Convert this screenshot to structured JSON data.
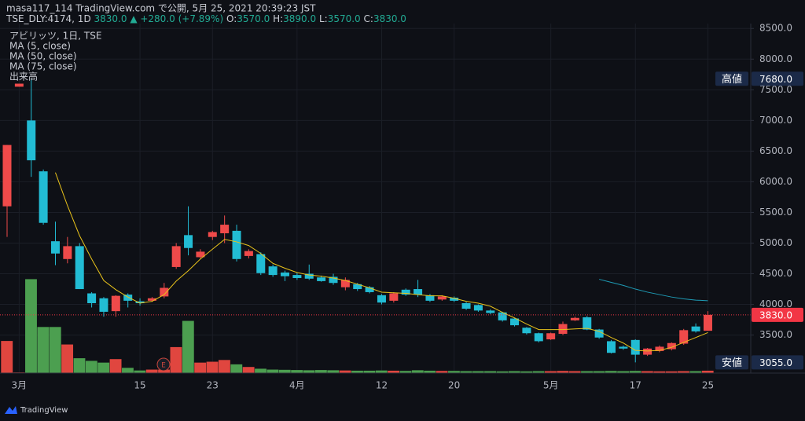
{
  "header": {
    "title": "masa117_114 TradingView.com で公開, 5月 25, 2021 20:39:23 JST",
    "symbol": "TSE_DLY:4174, 1D",
    "quote": "3830.0 ▲ +280.0 (+7.89%)",
    "ohlc": [
      {
        "key": "O:",
        "value": "3570.0"
      },
      {
        "key": "H:",
        "value": "3890.0"
      },
      {
        "key": "L:",
        "value": "3570.0"
      },
      {
        "key": "C:",
        "value": "3830.0"
      }
    ]
  },
  "legend_title": "アビリッツ, 1日, TSE",
  "volume_label": "出来高",
  "earnings_label": "E",
  "footer": "TradingView",
  "chart_data": {
    "type": "candlestick",
    "categories": [
      null,
      "3月",
      null,
      null,
      null,
      null,
      null,
      null,
      null,
      null,
      null,
      "15",
      null,
      null,
      null,
      null,
      null,
      "23",
      null,
      null,
      null,
      null,
      null,
      null,
      "4月",
      null,
      null,
      null,
      null,
      null,
      null,
      "12",
      null,
      null,
      null,
      null,
      null,
      "20",
      null,
      null,
      null,
      null,
      null,
      null,
      null,
      "5月",
      null,
      null,
      null,
      null,
      null,
      null,
      "17",
      null,
      null,
      null,
      null,
      null,
      "25"
    ],
    "open": [
      5600,
      7550,
      7000,
      6170,
      5030,
      4740,
      4950,
      4180,
      4100,
      3890,
      4160,
      4050,
      4060,
      4130,
      4610,
      5130,
      4770,
      5100,
      5160,
      5200,
      4790,
      4820,
      4620,
      4520,
      4480,
      4500,
      4440,
      4450,
      4280,
      4330,
      4280,
      4150,
      4060,
      4240,
      4250,
      4150,
      4080,
      4110,
      4020,
      3990,
      3900,
      3870,
      3770,
      3620,
      3530,
      3430,
      3520,
      3740,
      3790,
      3590,
      3400,
      3310,
      3420,
      3180,
      3240,
      3270,
      3360,
      3640,
      3570
    ],
    "high": [
      6600,
      7600,
      7680,
      6200,
      5350,
      5100,
      5000,
      4200,
      4120,
      4150,
      4180,
      4100,
      4120,
      4350,
      5000,
      5600,
      4900,
      5200,
      5450,
      5300,
      4900,
      4850,
      4650,
      4550,
      4520,
      4650,
      4470,
      4500,
      4440,
      4350,
      4300,
      4170,
      4200,
      4260,
      4400,
      4170,
      4150,
      4130,
      4040,
      4000,
      3920,
      3880,
      3780,
      3630,
      3540,
      3540,
      3720,
      3800,
      3810,
      3600,
      3420,
      3330,
      3430,
      3290,
      3330,
      3380,
      3600,
      3690,
      3890
    ],
    "low": [
      5100,
      7550,
      6080,
      5300,
      4640,
      4670,
      4250,
      3950,
      3800,
      3800,
      3950,
      3980,
      4040,
      4100,
      4580,
      4800,
      4750,
      5050,
      5000,
      4700,
      4750,
      4480,
      4450,
      4380,
      4400,
      4400,
      4370,
      4320,
      4230,
      4220,
      4180,
      4000,
      4030,
      4140,
      4120,
      4040,
      4060,
      4040,
      3910,
      3880,
      3840,
      3720,
      3640,
      3510,
      3380,
      3420,
      3500,
      3730,
      3580,
      3440,
      3200,
      3260,
      3055,
      3160,
      3220,
      3250,
      3340,
      3540,
      3570
    ],
    "close": [
      6600,
      7600,
      6350,
      5330,
      4830,
      4950,
      4250,
      4020,
      3880,
      4140,
      4060,
      4020,
      4100,
      4270,
      4950,
      4920,
      4860,
      5180,
      5300,
      4740,
      4870,
      4510,
      4480,
      4460,
      4430,
      4420,
      4380,
      4350,
      4400,
      4250,
      4200,
      4030,
      4180,
      4160,
      4160,
      4060,
      4130,
      4060,
      3930,
      3900,
      3860,
      3740,
      3660,
      3530,
      3400,
      3530,
      3680,
      3780,
      3590,
      3460,
      3210,
      3280,
      3180,
      3280,
      3310,
      3370,
      3580,
      3560,
      3830
    ],
    "volume": [
      1470,
      30,
      4300,
      2110,
      2110,
      1310,
      680,
      560,
      480,
      640,
      240,
      120,
      160,
      160,
      1190,
      2390,
      480,
      520,
      600,
      400,
      280,
      200,
      160,
      150,
      140,
      130,
      140,
      130,
      120,
      110,
      110,
      120,
      110,
      100,
      130,
      110,
      100,
      100,
      90,
      90,
      90,
      80,
      90,
      80,
      90,
      90,
      100,
      90,
      90,
      90,
      100,
      90,
      100,
      90,
      80,
      80,
      90,
      90,
      110
    ],
    "series": [
      {
        "name": "MA (5, close)",
        "color": "#e8c21b",
        "values": [
          null,
          null,
          null,
          null,
          6150,
          5610,
          5120,
          4740,
          4390,
          4240,
          4120,
          4020,
          4050,
          4160,
          4380,
          4550,
          4740,
          4900,
          5060,
          5020,
          4960,
          4830,
          4670,
          4590,
          4520,
          4480,
          4460,
          4430,
          4390,
          4330,
          4270,
          4200,
          4190,
          4180,
          4160,
          4140,
          4140,
          4100,
          4050,
          4020,
          3970,
          3870,
          3780,
          3680,
          3590,
          3590,
          3590,
          3600,
          3610,
          3560,
          3460,
          3370,
          3250,
          3240,
          3250,
          3300,
          3380,
          3460,
          3540
        ]
      },
      {
        "name": "MA (50, close)",
        "color": "#1e9bb5",
        "values": [
          null,
          null,
          null,
          null,
          null,
          null,
          null,
          null,
          null,
          null,
          null,
          null,
          null,
          null,
          null,
          null,
          null,
          null,
          null,
          null,
          null,
          null,
          null,
          null,
          null,
          null,
          null,
          null,
          null,
          null,
          null,
          null,
          null,
          null,
          null,
          null,
          null,
          null,
          null,
          null,
          null,
          null,
          null,
          null,
          null,
          null,
          null,
          null,
          null,
          4410,
          4360,
          4310,
          4250,
          4200,
          4160,
          4120,
          4090,
          4070,
          4060
        ]
      },
      {
        "name": "MA (75, close)",
        "color": "#b04bd6",
        "values": [
          null,
          null,
          null,
          null,
          null,
          null,
          null,
          null,
          null,
          null,
          null,
          null,
          null,
          null,
          null,
          null,
          null,
          null,
          null,
          null,
          null,
          null,
          null,
          null,
          null,
          null,
          null,
          null,
          null,
          null,
          null,
          null,
          null,
          null,
          null,
          null,
          null,
          null,
          null,
          null,
          null,
          null,
          null,
          null,
          null,
          null,
          null,
          null,
          null,
          null,
          null,
          null,
          null,
          null,
          null,
          null,
          null,
          null,
          null
        ]
      }
    ],
    "up_color": "#ef4a4a",
    "down_color": "#22bcd4",
    "volume_up_color": "#e0463f",
    "volume_down_color": "#4c9f50",
    "ylim": [
      2880,
      8580
    ],
    "yticks": [
      {
        "value": 3500,
        "label": "3500.0"
      },
      {
        "value": 4000,
        "label": "4000.0"
      },
      {
        "value": 4500,
        "label": "4500.0"
      },
      {
        "value": 5000,
        "label": "5000.0"
      },
      {
        "value": 5500,
        "label": "5500.0"
      },
      {
        "value": 6000,
        "label": "6000.0"
      },
      {
        "value": 6500,
        "label": "6500.0"
      },
      {
        "value": 7000,
        "label": "7000.0"
      },
      {
        "value": 7500,
        "label": "7500.0"
      },
      {
        "value": 8000,
        "label": "8000.0"
      },
      {
        "value": 8500,
        "label": "8500.0"
      }
    ],
    "volume_ylim": [
      0,
      16000
    ],
    "grid": true,
    "price_badges": [
      {
        "name": "高値",
        "value": 7680,
        "label": "7680.0",
        "color": "#1b2a48"
      },
      {
        "value": 3830,
        "label": "3830.0",
        "color": "#f23645"
      },
      {
        "name": "安値",
        "value": 3055,
        "label": "3055.0",
        "color": "#1b2a48"
      }
    ]
  }
}
